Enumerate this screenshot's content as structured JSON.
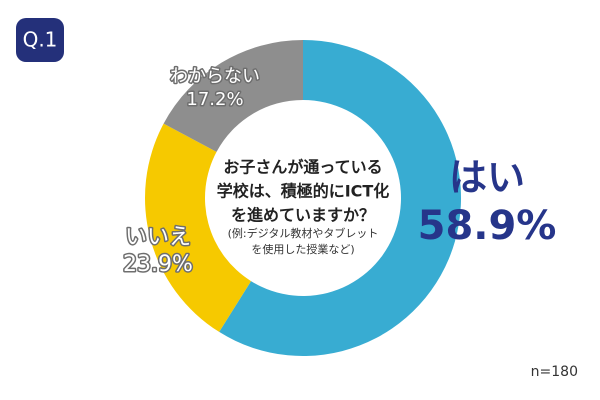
{
  "badge": "Q.1",
  "sample": "n=180",
  "chart_data": {
    "type": "donut",
    "question": [
      "お子さんが通っている",
      "学校は、積極的にICT化",
      "を進めていますか？"
    ],
    "note": [
      "(例:デジタル教材やタブレット",
      "を使用した授業など)"
    ],
    "categories": [
      "はい",
      "いいえ",
      "わからない"
    ],
    "values": [
      58.9,
      23.9,
      17.2
    ],
    "value_labels": [
      "58.9%",
      "23.9%",
      "17.2%"
    ],
    "colors": [
      "#38acd2",
      "#f6c900",
      "#8e8e8e"
    ]
  }
}
